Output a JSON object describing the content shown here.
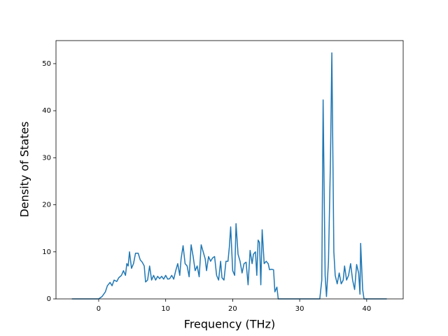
{
  "chart_data": {
    "type": "line",
    "x_label": "Frequency (THz)",
    "y_label": "Density of States",
    "x": [
      -4,
      0,
      0.5,
      1,
      1.3,
      1.7,
      2,
      2.3,
      2.7,
      3,
      3.4,
      3.7,
      4,
      4.2,
      4.4,
      4.6,
      4.9,
      5.2,
      5.5,
      5.9,
      6.2,
      6.5,
      6.8,
      7,
      7.3,
      7.6,
      7.9,
      8.2,
      8.5,
      8.8,
      9.1,
      9.4,
      9.7,
      10,
      10.3,
      10.6,
      10.9,
      11.2,
      11.5,
      11.8,
      12.1,
      12.3,
      12.6,
      12.9,
      13.2,
      13.5,
      13.8,
      14.1,
      14.4,
      14.7,
      15,
      15.3,
      15.6,
      15.9,
      16.1,
      16.4,
      16.7,
      17,
      17.3,
      17.6,
      17.9,
      18.2,
      18.4,
      18.7,
      19,
      19.3,
      19.5,
      19.7,
      20,
      20.3,
      20.5,
      20.8,
      21.1,
      21.4,
      21.7,
      22,
      22.3,
      22.6,
      22.9,
      23.1,
      23.4,
      23.6,
      23.8,
      24,
      24.2,
      24.4,
      24.7,
      25,
      25.3,
      25.5,
      25.8,
      26.1,
      26.3,
      26.6,
      26.8,
      33,
      33.3,
      33.5,
      33.8,
      34,
      34.3,
      34.6,
      34.8,
      35.1,
      35.3,
      35.6,
      35.9,
      36.2,
      36.5,
      36.7,
      37,
      37.3,
      37.6,
      37.9,
      38.2,
      38.5,
      38.8,
      39,
      39.1,
      39.4,
      39.6,
      43
    ],
    "values": [
      0,
      0,
      0.5,
      1.5,
      2.8,
      3.5,
      2.8,
      4,
      3.7,
      4.5,
      5,
      6,
      5,
      7.5,
      7,
      10,
      6.5,
      7.5,
      9.7,
      9.7,
      8.3,
      7.8,
      7,
      3.6,
      4,
      7,
      4,
      5,
      4,
      4.8,
      4.3,
      4.8,
      4.2,
      5,
      4.2,
      4.3,
      5,
      4.2,
      6,
      7.5,
      5,
      8.5,
      11.3,
      7.5,
      7,
      4.7,
      11.5,
      9,
      6,
      7,
      4.7,
      11.5,
      10,
      8.5,
      6,
      9,
      8,
      8.7,
      9,
      5,
      4,
      8,
      4.5,
      4,
      8,
      8,
      11,
      15.3,
      6,
      5,
      16,
      9.5,
      8,
      5.5,
      7.5,
      7.8,
      3,
      10.3,
      7.5,
      9.5,
      10,
      5,
      12.5,
      12,
      3,
      14.7,
      7.5,
      8,
      7.5,
      6.2,
      6.3,
      6.2,
      1.5,
      2.5,
      0,
      0,
      4,
      42.3,
      5,
      0.5,
      8,
      30,
      52.3,
      10,
      5,
      3.2,
      5.5,
      3.2,
      4,
      7,
      4,
      5,
      7.5,
      4,
      2,
      7.3,
      5.5,
      1,
      11.8,
      2,
      0,
      0
    ],
    "color": "#1f77b4",
    "xlim": [
      -6.37,
      45.45
    ],
    "xticks": [
      0,
      10,
      20,
      30,
      40
    ],
    "ylim": [
      0,
      54.9
    ],
    "yticks": [
      0,
      10,
      20,
      30,
      40,
      50
    ]
  }
}
